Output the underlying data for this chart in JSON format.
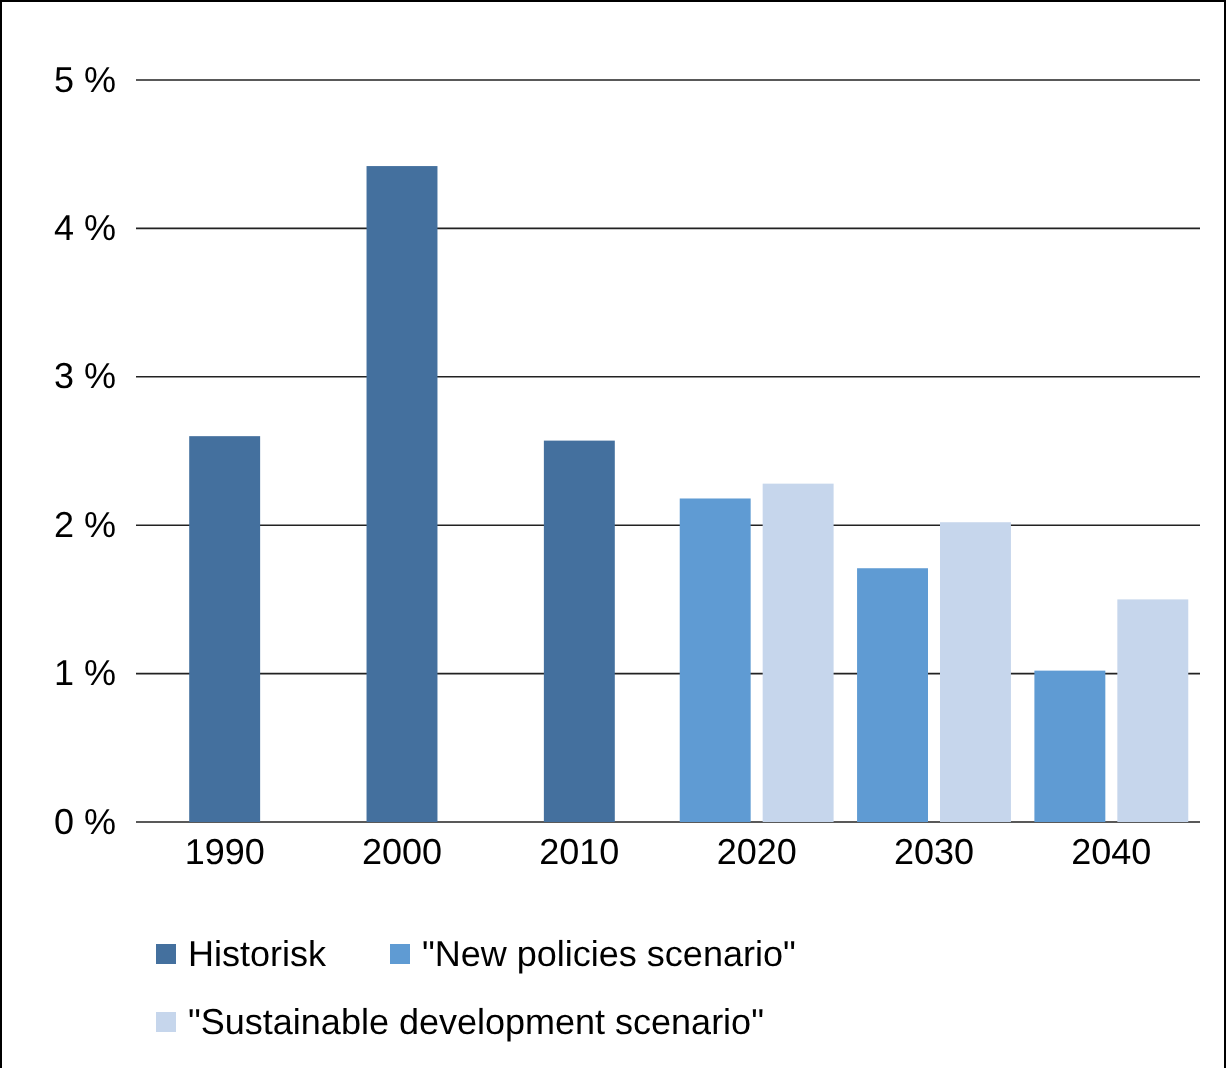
{
  "chart_data": {
    "type": "bar",
    "categories": [
      "1990",
      "2000",
      "2010",
      "2020",
      "2030",
      "2040"
    ],
    "series": [
      {
        "name": "Historisk",
        "color": "#44709e",
        "values": [
          2.6,
          4.42,
          2.57,
          null,
          null,
          null
        ]
      },
      {
        "name": "\"New policies scenario\"",
        "color": "#5f9bd3",
        "values": [
          null,
          null,
          null,
          2.18,
          1.71,
          1.02
        ]
      },
      {
        "name": "\"Sustainable development scenario\"",
        "color": "#c6d6ec",
        "values": [
          null,
          null,
          null,
          2.28,
          2.02,
          1.5
        ]
      }
    ],
    "ylim": [
      0,
      5
    ],
    "yticks": [
      {
        "value": 0,
        "label": "0 %"
      },
      {
        "value": 1,
        "label": "1 %"
      },
      {
        "value": 2,
        "label": "2 %"
      },
      {
        "value": 3,
        "label": "3 %"
      },
      {
        "value": 4,
        "label": "4 %"
      },
      {
        "value": 5,
        "label": "5 %"
      }
    ],
    "grid": "y",
    "legend": "bottom"
  }
}
